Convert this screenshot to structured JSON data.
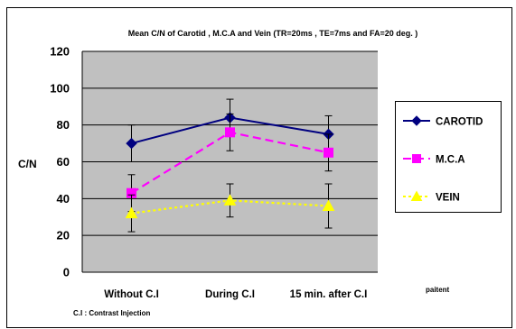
{
  "chart_data": {
    "type": "line",
    "title": "Mean C/N of Carotid , M.C.A and Vein  (TR=20ms , TE=7ms and FA=20 deg. )",
    "ylabel": "C/N",
    "xlabel": "paitent",
    "categories": [
      "Without C.I",
      "During C.I",
      "15 min. after C.I"
    ],
    "ylim": [
      0,
      120
    ],
    "yticks": [
      0,
      20,
      40,
      60,
      80,
      100,
      120
    ],
    "grid": true,
    "legend_position": "right",
    "footnote": "C.I : Contrast Injection",
    "series": [
      {
        "name": "CAROTID",
        "values": [
          70,
          84,
          75
        ],
        "errors": [
          10,
          10,
          10
        ],
        "color": "#000080",
        "marker": "diamond",
        "line": "solid"
      },
      {
        "name": "M.C.A",
        "values": [
          43,
          76,
          65
        ],
        "errors": [
          10,
          10,
          10
        ],
        "color": "#ff00ff",
        "marker": "square",
        "line": "dashed"
      },
      {
        "name": "VEIN",
        "values": [
          32,
          39,
          36
        ],
        "errors": [
          10,
          9,
          12
        ],
        "color": "#ffff00",
        "marker": "triangle",
        "line": "dotted"
      }
    ]
  },
  "colors": {
    "plot_background": "#c0c0c0",
    "gridline": "#000000"
  }
}
